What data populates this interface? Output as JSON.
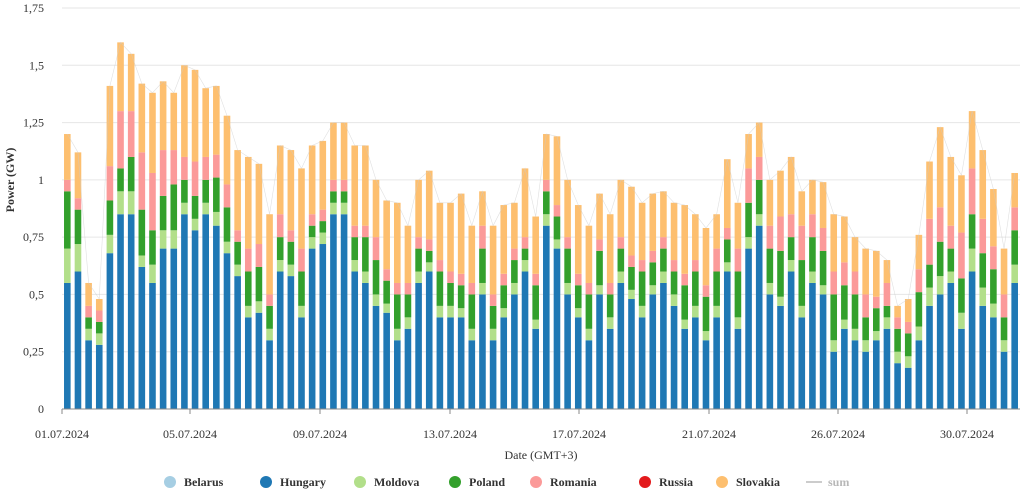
{
  "chart_data": {
    "type": "area",
    "stacked": true,
    "title": "",
    "xlabel": "Date (GMT+3)",
    "ylabel": "Power (GW)",
    "ylim": [
      0,
      1.75
    ],
    "yticks": [
      "0",
      "0,25",
      "0,5",
      "0,75",
      "1",
      "1,25",
      "1,5",
      "1,75"
    ],
    "xticks": [
      "01.07.2024",
      "05.07.2024",
      "09.07.2024",
      "13.07.2024",
      "17.07.2024",
      "21.07.2024",
      "26.07.2024",
      "30.07.2024"
    ],
    "x_start": "01.07.2024",
    "x_end": "31.07.2024",
    "grid": true,
    "legend_position": "bottom",
    "legend": [
      {
        "name": "Belarus",
        "color": "#a6cee3",
        "kind": "dot"
      },
      {
        "name": "Hungary",
        "color": "#1f78b4",
        "kind": "dot"
      },
      {
        "name": "Moldova",
        "color": "#b2df8a",
        "kind": "dot"
      },
      {
        "name": "Poland",
        "color": "#33a02c",
        "kind": "dot"
      },
      {
        "name": "Romania",
        "color": "#fb9a99",
        "kind": "dot"
      },
      {
        "name": "Russia",
        "color": "#e31a1c",
        "kind": "dot"
      },
      {
        "name": "Slovakia",
        "color": "#fdbf6f",
        "kind": "dot"
      },
      {
        "name": "sum",
        "color": "#cccccc",
        "kind": "line"
      }
    ],
    "series": [
      {
        "name": "Hungary",
        "color": "#1f78b4",
        "values": [
          0.55,
          0.6,
          0.3,
          0.28,
          0.68,
          0.85,
          0.85,
          0.62,
          0.55,
          0.7,
          0.7,
          0.85,
          0.78,
          0.85,
          0.8,
          0.68,
          0.58,
          0.4,
          0.42,
          0.3,
          0.6,
          0.58,
          0.4,
          0.7,
          0.72,
          0.85,
          0.85,
          0.6,
          0.55,
          0.45,
          0.42,
          0.3,
          0.35,
          0.55,
          0.6,
          0.4,
          0.4,
          0.4,
          0.3,
          0.5,
          0.3,
          0.4,
          0.5,
          0.6,
          0.35,
          0.8,
          0.7,
          0.5,
          0.4,
          0.3,
          0.5,
          0.35,
          0.55,
          0.48,
          0.4,
          0.5,
          0.55,
          0.45,
          0.35,
          0.4,
          0.3,
          0.4,
          0.6,
          0.35,
          0.7,
          0.8,
          0.5,
          0.45,
          0.6,
          0.4,
          0.55,
          0.5,
          0.25,
          0.35,
          0.3,
          0.25,
          0.3,
          0.35,
          0.2,
          0.18,
          0.3,
          0.45,
          0.5,
          0.55,
          0.35,
          0.6,
          0.45,
          0.4,
          0.25,
          0.55
        ]
      },
      {
        "name": "Moldova",
        "color": "#b2df8a",
        "values": [
          0.15,
          0.12,
          0.05,
          0.05,
          0.08,
          0.1,
          0.1,
          0.05,
          0.08,
          0.08,
          0.08,
          0.05,
          0.05,
          0.05,
          0.06,
          0.05,
          0.05,
          0.05,
          0.05,
          0.05,
          0.05,
          0.05,
          0.05,
          0.05,
          0.05,
          0.05,
          0.05,
          0.05,
          0.05,
          0.05,
          0.04,
          0.05,
          0.05,
          0.05,
          0.04,
          0.05,
          0.05,
          0.04,
          0.05,
          0.05,
          0.05,
          0.04,
          0.05,
          0.05,
          0.04,
          0.05,
          0.04,
          0.05,
          0.04,
          0.05,
          0.04,
          0.05,
          0.05,
          0.04,
          0.05,
          0.04,
          0.05,
          0.05,
          0.04,
          0.05,
          0.04,
          0.05,
          0.04,
          0.05,
          0.05,
          0.05,
          0.05,
          0.04,
          0.05,
          0.05,
          0.05,
          0.04,
          0.05,
          0.04,
          0.05,
          0.05,
          0.04,
          0.05,
          0.05,
          0.05,
          0.06,
          0.08,
          0.08,
          0.05,
          0.07,
          0.1,
          0.08,
          0.06,
          0.05,
          0.08
        ]
      },
      {
        "name": "Poland",
        "color": "#33a02c",
        "values": [
          0.25,
          0.15,
          0.05,
          0.05,
          0.15,
          0.1,
          0.15,
          0.2,
          0.15,
          0.15,
          0.2,
          0.1,
          0.1,
          0.1,
          0.15,
          0.15,
          0.1,
          0.15,
          0.15,
          0.1,
          0.1,
          0.1,
          0.15,
          0.05,
          0.05,
          0.05,
          0.05,
          0.1,
          0.15,
          0.15,
          0.1,
          0.15,
          0.1,
          0.1,
          0.05,
          0.15,
          0.1,
          0.1,
          0.15,
          0.15,
          0.1,
          0.1,
          0.1,
          0.05,
          0.15,
          0.1,
          0.1,
          0.15,
          0.1,
          0.15,
          0.15,
          0.1,
          0.1,
          0.1,
          0.15,
          0.1,
          0.1,
          0.1,
          0.15,
          0.15,
          0.15,
          0.15,
          0.1,
          0.2,
          0.15,
          0.15,
          0.15,
          0.2,
          0.1,
          0.2,
          0.15,
          0.15,
          0.2,
          0.15,
          0.15,
          0.1,
          0.1,
          0.05,
          0.1,
          0.1,
          0.15,
          0.1,
          0.15,
          0.1,
          0.15,
          0.15,
          0.15,
          0.15,
          0.1,
          0.15
        ]
      },
      {
        "name": "Romania",
        "color": "#fb9a99",
        "values": [
          0.05,
          0.05,
          0.05,
          0.05,
          0.15,
          0.25,
          0.2,
          0.25,
          0.25,
          0.2,
          0.15,
          0.1,
          0.15,
          0.1,
          0.1,
          0.1,
          0.05,
          0.1,
          0.1,
          0.05,
          0.1,
          0.05,
          0.1,
          0.05,
          0.05,
          0.05,
          0.05,
          0.05,
          0.05,
          0.1,
          0.05,
          0.05,
          0.05,
          0.05,
          0.05,
          0.05,
          0.05,
          0.05,
          0.05,
          0.1,
          0.05,
          0.05,
          0.05,
          0.05,
          0.05,
          0.05,
          0.05,
          0.05,
          0.05,
          0.05,
          0.05,
          0.05,
          0.05,
          0.05,
          0.05,
          0.05,
          0.05,
          0.05,
          0.05,
          0.05,
          0.05,
          0.1,
          0.05,
          0.1,
          0.15,
          0.1,
          0.1,
          0.15,
          0.1,
          0.15,
          0.1,
          0.1,
          0.1,
          0.1,
          0.1,
          0.1,
          0.05,
          0.1,
          0.05,
          0.05,
          0.1,
          0.2,
          0.15,
          0.1,
          0.2,
          0.2,
          0.15,
          0.1,
          0.1,
          0.1
        ]
      },
      {
        "name": "Slovakia",
        "color": "#fdbf6f",
        "values": [
          0.2,
          0.2,
          0.1,
          0.05,
          0.35,
          0.3,
          0.25,
          0.3,
          0.35,
          0.3,
          0.25,
          0.4,
          0.4,
          0.3,
          0.3,
          0.3,
          0.35,
          0.4,
          0.35,
          0.35,
          0.3,
          0.35,
          0.35,
          0.3,
          0.3,
          0.25,
          0.25,
          0.35,
          0.35,
          0.25,
          0.3,
          0.35,
          0.25,
          0.25,
          0.3,
          0.25,
          0.3,
          0.35,
          0.25,
          0.15,
          0.3,
          0.3,
          0.2,
          0.3,
          0.25,
          0.2,
          0.3,
          0.25,
          0.3,
          0.25,
          0.2,
          0.3,
          0.25,
          0.3,
          0.25,
          0.25,
          0.2,
          0.25,
          0.3,
          0.2,
          0.25,
          0.15,
          0.3,
          0.2,
          0.15,
          0.15,
          0.2,
          0.2,
          0.25,
          0.15,
          0.15,
          0.2,
          0.25,
          0.2,
          0.15,
          0.2,
          0.2,
          0.1,
          0.05,
          0.1,
          0.15,
          0.25,
          0.35,
          0.3,
          0.25,
          0.25,
          0.3,
          0.25,
          0.2,
          0.15
        ]
      }
    ]
  }
}
